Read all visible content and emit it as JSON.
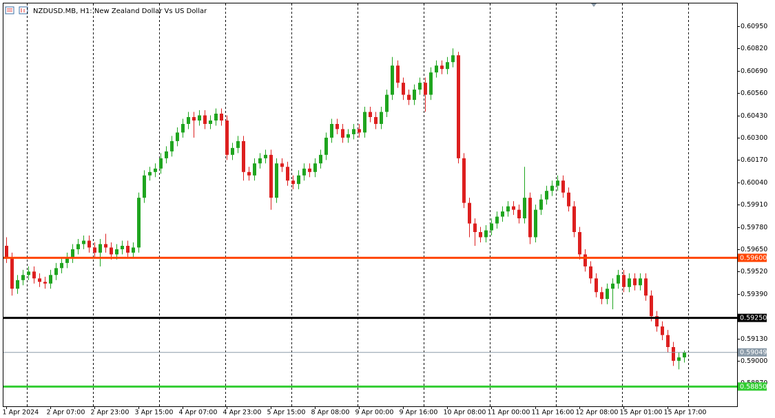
{
  "chart_data": {
    "type": "candlestick",
    "title": "NZDUSD.MB, H1:  New Zealand Dollar Vs US Dollar",
    "up_color": "#1fa51f",
    "down_color": "#dd1f1f",
    "xlim": [
      -0.5,
      132.625
    ],
    "xticks": [
      {
        "value": 0,
        "label": "1 Apr 2024"
      },
      {
        "value": 8,
        "label": "2 Apr 07:00"
      },
      {
        "value": 16,
        "label": "2 Apr 23:00"
      },
      {
        "value": 24,
        "label": "3 Apr 15:00"
      },
      {
        "value": 32,
        "label": "4 Apr 07:00"
      },
      {
        "value": 40,
        "label": "4 Apr 23:00"
      },
      {
        "value": 48,
        "label": "5 Apr 15:00"
      },
      {
        "value": 56,
        "label": "8 Apr 08:00"
      },
      {
        "value": 64,
        "label": "9 Apr 00:00"
      },
      {
        "value": 72,
        "label": "9 Apr 16:00"
      },
      {
        "value": 80,
        "label": "10 Apr 08:00"
      },
      {
        "value": 88,
        "label": "11 Apr 00:00"
      },
      {
        "value": 96,
        "label": "11 Apr 16:00"
      },
      {
        "value": 104,
        "label": "12 Apr 08:00"
      },
      {
        "value": 112,
        "label": "15 Apr 01:00"
      },
      {
        "value": 120,
        "label": "15 Apr 17:00"
      }
    ],
    "ylim": [
      0.58735,
      0.61082
    ],
    "yticks": [
      {
        "value": 0.6095,
        "label": "0.60950"
      },
      {
        "value": 0.6082,
        "label": "0.60820"
      },
      {
        "value": 0.6069,
        "label": "0.60690"
      },
      {
        "value": 0.6056,
        "label": "0.60560"
      },
      {
        "value": 0.6043,
        "label": "0.60430"
      },
      {
        "value": 0.603,
        "label": "0.60300"
      },
      {
        "value": 0.6017,
        "label": "0.60170"
      },
      {
        "value": 0.6004,
        "label": "0.60040"
      },
      {
        "value": 0.5991,
        "label": "0.59910"
      },
      {
        "value": 0.5978,
        "label": "0.59780"
      },
      {
        "value": 0.5965,
        "label": "0.59650"
      },
      {
        "value": 0.5952,
        "label": "0.59520"
      },
      {
        "value": 0.5939,
        "label": "0.59390"
      },
      {
        "value": 0.5913,
        "label": "0.59130"
      },
      {
        "value": 0.59,
        "label": "0.59000"
      },
      {
        "value": 0.5887,
        "label": "0.58870"
      }
    ],
    "hlines": [
      {
        "value": 0.596,
        "label": "0.59600",
        "color": "#ff4500",
        "width": 3
      },
      {
        "value": 0.5925,
        "label": "0.59250",
        "color": "#000000",
        "width": 3
      },
      {
        "value": 0.59049,
        "label": "0.59049",
        "color": "#8a9aa8",
        "width": 1
      },
      {
        "value": 0.5885,
        "label": "0.58850",
        "color": "#32cd32",
        "width": 3
      }
    ],
    "candles": [
      [
        0.5967,
        0.5972,
        0.5957,
        0.596
      ],
      [
        0.596,
        0.5963,
        0.5938,
        0.5942
      ],
      [
        0.5942,
        0.595,
        0.5939,
        0.5947
      ],
      [
        0.5947,
        0.5953,
        0.5944,
        0.595
      ],
      [
        0.595,
        0.5955,
        0.5947,
        0.5952
      ],
      [
        0.5952,
        0.5955,
        0.5945,
        0.5948
      ],
      [
        0.5948,
        0.5951,
        0.5943,
        0.5946
      ],
      [
        0.5946,
        0.5949,
        0.5942,
        0.5945
      ],
      [
        0.5945,
        0.5953,
        0.5942,
        0.595
      ],
      [
        0.595,
        0.5957,
        0.5947,
        0.5954
      ],
      [
        0.5954,
        0.596,
        0.5951,
        0.5957
      ],
      [
        0.5957,
        0.5963,
        0.5954,
        0.596
      ],
      [
        0.596,
        0.5968,
        0.5957,
        0.5965
      ],
      [
        0.5965,
        0.5971,
        0.5962,
        0.5968
      ],
      [
        0.5968,
        0.5973,
        0.5965,
        0.597
      ],
      [
        0.597,
        0.5973,
        0.5963,
        0.5966
      ],
      [
        0.5966,
        0.5969,
        0.596,
        0.5963
      ],
      [
        0.5963,
        0.5971,
        0.5955,
        0.5968
      ],
      [
        0.5968,
        0.5974,
        0.5963,
        0.5966
      ],
      [
        0.5966,
        0.5969,
        0.5959,
        0.5962
      ],
      [
        0.5962,
        0.5968,
        0.5959,
        0.5965
      ],
      [
        0.5965,
        0.597,
        0.5962,
        0.5967
      ],
      [
        0.5967,
        0.597,
        0.596,
        0.5963
      ],
      [
        0.5963,
        0.5969,
        0.596,
        0.5966
      ],
      [
        0.5966,
        0.5998,
        0.5963,
        0.5995
      ],
      [
        0.5995,
        0.6011,
        0.5992,
        0.6008
      ],
      [
        0.6008,
        0.6013,
        0.6005,
        0.601
      ],
      [
        0.601,
        0.6015,
        0.6007,
        0.6012
      ],
      [
        0.6012,
        0.6021,
        0.6009,
        0.6018
      ],
      [
        0.6018,
        0.6025,
        0.6015,
        0.6022
      ],
      [
        0.6022,
        0.6031,
        0.6019,
        0.6028
      ],
      [
        0.6028,
        0.6036,
        0.6025,
        0.6033
      ],
      [
        0.6033,
        0.6041,
        0.603,
        0.6038
      ],
      [
        0.6038,
        0.6045,
        0.6035,
        0.6042
      ],
      [
        0.6042,
        0.6045,
        0.603,
        0.604
      ],
      [
        0.604,
        0.6046,
        0.6037,
        0.6043
      ],
      [
        0.6043,
        0.6046,
        0.6035,
        0.6038
      ],
      [
        0.6038,
        0.6043,
        0.6035,
        0.604
      ],
      [
        0.604,
        0.6047,
        0.6037,
        0.6044
      ],
      [
        0.6044,
        0.6047,
        0.6037,
        0.604
      ],
      [
        0.604,
        0.6043,
        0.6017,
        0.602
      ],
      [
        0.602,
        0.6027,
        0.6017,
        0.6024
      ],
      [
        0.6024,
        0.6031,
        0.6021,
        0.6028
      ],
      [
        0.6028,
        0.6031,
        0.6005,
        0.601
      ],
      [
        0.601,
        0.6013,
        0.6005,
        0.6008
      ],
      [
        0.6008,
        0.6018,
        0.6005,
        0.6015
      ],
      [
        0.6015,
        0.6021,
        0.6012,
        0.6018
      ],
      [
        0.6018,
        0.6023,
        0.6015,
        0.602
      ],
      [
        0.602,
        0.6023,
        0.5988,
        0.5995
      ],
      [
        0.5995,
        0.6018,
        0.5992,
        0.6015
      ],
      [
        0.6015,
        0.6018,
        0.601,
        0.6013
      ],
      [
        0.6013,
        0.6016,
        0.6002,
        0.6005
      ],
      [
        0.6005,
        0.6008,
        0.6,
        0.6003
      ],
      [
        0.6003,
        0.6011,
        0.6,
        0.6008
      ],
      [
        0.6008,
        0.6015,
        0.6005,
        0.6012
      ],
      [
        0.6012,
        0.6015,
        0.6007,
        0.601
      ],
      [
        0.601,
        0.6018,
        0.6007,
        0.6015
      ],
      [
        0.6015,
        0.6023,
        0.6012,
        0.602
      ],
      [
        0.602,
        0.6033,
        0.6017,
        0.603
      ],
      [
        0.603,
        0.6041,
        0.6027,
        0.6038
      ],
      [
        0.6038,
        0.6041,
        0.6032,
        0.6035
      ],
      [
        0.6035,
        0.6038,
        0.6027,
        0.603
      ],
      [
        0.603,
        0.6035,
        0.6027,
        0.6032
      ],
      [
        0.6032,
        0.6038,
        0.6029,
        0.6035
      ],
      [
        0.6035,
        0.6038,
        0.603,
        0.6033
      ],
      [
        0.6033,
        0.6048,
        0.603,
        0.6045
      ],
      [
        0.6045,
        0.6048,
        0.6039,
        0.6042
      ],
      [
        0.6042,
        0.6045,
        0.6035,
        0.6038
      ],
      [
        0.6038,
        0.6048,
        0.6035,
        0.6045
      ],
      [
        0.6045,
        0.6058,
        0.6042,
        0.6055
      ],
      [
        0.6055,
        0.6077,
        0.6052,
        0.6072
      ],
      [
        0.6072,
        0.6075,
        0.6059,
        0.6062
      ],
      [
        0.6062,
        0.6065,
        0.6052,
        0.6055
      ],
      [
        0.6055,
        0.6058,
        0.6049,
        0.6052
      ],
      [
        0.6052,
        0.6061,
        0.6049,
        0.6058
      ],
      [
        0.6058,
        0.6065,
        0.6055,
        0.6062
      ],
      [
        0.6062,
        0.6065,
        0.6045,
        0.6055
      ],
      [
        0.6055,
        0.6071,
        0.6052,
        0.6068
      ],
      [
        0.6068,
        0.6075,
        0.6065,
        0.6072
      ],
      [
        0.6072,
        0.6075,
        0.6067,
        0.607
      ],
      [
        0.607,
        0.6077,
        0.6067,
        0.6074
      ],
      [
        0.6074,
        0.6082,
        0.6071,
        0.6078
      ],
      [
        0.6078,
        0.608,
        0.6015,
        0.6018
      ],
      [
        0.6018,
        0.6021,
        0.5989,
        0.5992
      ],
      [
        0.5992,
        0.5995,
        0.5972,
        0.598
      ],
      [
        0.598,
        0.5983,
        0.5967,
        0.5975
      ],
      [
        0.5975,
        0.5978,
        0.5969,
        0.5972
      ],
      [
        0.5972,
        0.5979,
        0.5969,
        0.5976
      ],
      [
        0.5976,
        0.5983,
        0.5973,
        0.598
      ],
      [
        0.598,
        0.5987,
        0.5977,
        0.5984
      ],
      [
        0.5984,
        0.599,
        0.5981,
        0.5987
      ],
      [
        0.5987,
        0.5993,
        0.5984,
        0.599
      ],
      [
        0.599,
        0.5993,
        0.5985,
        0.5988
      ],
      [
        0.5988,
        0.5991,
        0.598,
        0.5983
      ],
      [
        0.5983,
        0.6013,
        0.598,
        0.5995
      ],
      [
        0.5995,
        0.5998,
        0.5968,
        0.5972
      ],
      [
        0.5972,
        0.5991,
        0.5969,
        0.5988
      ],
      [
        0.5988,
        0.5997,
        0.5985,
        0.5994
      ],
      [
        0.5994,
        0.6002,
        0.5991,
        0.5999
      ],
      [
        0.5999,
        0.6005,
        0.5996,
        0.6002
      ],
      [
        0.6002,
        0.6008,
        0.5999,
        0.6005
      ],
      [
        0.6005,
        0.6008,
        0.5995,
        0.5998
      ],
      [
        0.5998,
        0.6001,
        0.5987,
        0.599
      ],
      [
        0.599,
        0.5993,
        0.5972,
        0.5975
      ],
      [
        0.5975,
        0.5978,
        0.5959,
        0.5962
      ],
      [
        0.5962,
        0.5965,
        0.5952,
        0.5955
      ],
      [
        0.5955,
        0.5958,
        0.5945,
        0.5948
      ],
      [
        0.5948,
        0.5951,
        0.5937,
        0.594
      ],
      [
        0.594,
        0.5943,
        0.5933,
        0.5936
      ],
      [
        0.5936,
        0.5945,
        0.5933,
        0.5942
      ],
      [
        0.5942,
        0.5948,
        0.593,
        0.5945
      ],
      [
        0.5945,
        0.5953,
        0.5942,
        0.595
      ],
      [
        0.595,
        0.5953,
        0.594,
        0.5943
      ],
      [
        0.5943,
        0.5951,
        0.594,
        0.5948
      ],
      [
        0.5948,
        0.5951,
        0.5941,
        0.5944
      ],
      [
        0.5944,
        0.5951,
        0.5941,
        0.5948
      ],
      [
        0.5948,
        0.5951,
        0.5935,
        0.5938
      ],
      [
        0.5938,
        0.5941,
        0.5923,
        0.5926
      ],
      [
        0.5926,
        0.5929,
        0.5917,
        0.592
      ],
      [
        0.592,
        0.5923,
        0.5912,
        0.5915
      ],
      [
        0.5915,
        0.5918,
        0.5905,
        0.5908
      ],
      [
        0.5908,
        0.5911,
        0.5897,
        0.59
      ],
      [
        0.59,
        0.5905,
        0.5895,
        0.5902
      ],
      [
        0.5902,
        0.5906,
        0.5899,
        0.5905
      ]
    ]
  }
}
